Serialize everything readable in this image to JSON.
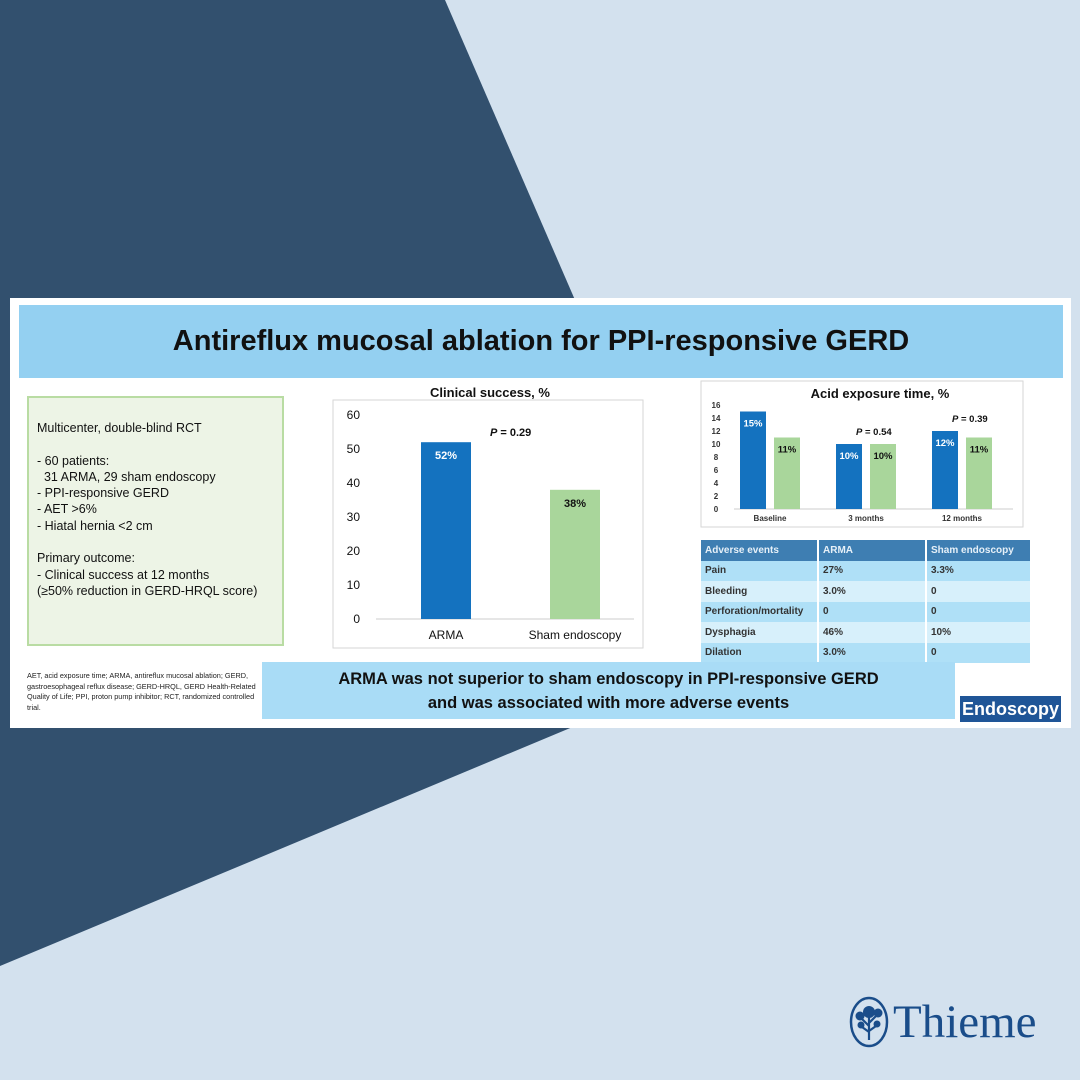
{
  "title": "Antireflux mucosal ablation for PPI-responsive GERD",
  "study_design": {
    "lines": [
      "Multicenter, double-blind RCT",
      "",
      "- 60 patients:",
      "  31 ARMA, 29 sham endoscopy",
      "- PPI-responsive GERD",
      "- AET >6%",
      "- Hiatal hernia <2 cm",
      "",
      "Primary outcome:",
      "- Clinical success at 12 months",
      "(≥50% reduction in GERD-HRQL score)"
    ]
  },
  "footnote": "AET, acid exposure time; ARMA, antireflux mucosal ablation; GERD, gastroesophageal reflux disease; GERD-HRQL, GERD Health-Related Quality of Life; PPI, proton pump inhibitor; RCT, randomized controlled trial.",
  "conclusion": {
    "line1": "ARMA was not superior to sham endoscopy in PPI-responsive GERD",
    "line2": "and was associated with more adverse events"
  },
  "journal_logo": "Endoscopy",
  "publisher_logo": "Thieme",
  "colors": {
    "background": "#d3e1ee",
    "dark_triangle": "#32506e",
    "arma_bar": "#1472bf",
    "sham_bar": "#a9d69b",
    "title_band": "#94d0f1",
    "publisher": "#1a4d8a"
  },
  "chart_data": [
    {
      "type": "bar",
      "title": "Clinical success, %",
      "categories": [
        "ARMA",
        "Sham endoscopy"
      ],
      "values": [
        52,
        38
      ],
      "data_labels": [
        "52%",
        "38%"
      ],
      "ylim": [
        0,
        60
      ],
      "yticks": [
        0,
        10,
        20,
        30,
        40,
        50,
        60
      ],
      "annotation_prefix": "P",
      "annotation_value": " = 0.29",
      "colors": [
        "#1472bf",
        "#a9d69b"
      ],
      "grid": false
    },
    {
      "type": "bar",
      "title": "Acid exposure time, %",
      "categories": [
        "Baseline",
        "3 months",
        "12 months"
      ],
      "series": [
        {
          "values": [
            15,
            10,
            12
          ],
          "data_labels": [
            "15%",
            "10%",
            "12%"
          ],
          "color": "#1472bf"
        },
        {
          "values": [
            11,
            10,
            11
          ],
          "data_labels": [
            "11%",
            "10%",
            "11%"
          ],
          "color": "#a9d69b"
        }
      ],
      "ylim": [
        0,
        16
      ],
      "yticks": [
        0,
        2,
        4,
        6,
        8,
        10,
        12,
        14,
        16
      ],
      "annotations": [
        {
          "category": "3 months",
          "prefix": "P",
          "value": " = 0.54"
        },
        {
          "category": "12 months",
          "prefix": "P",
          "value": " = 0.39"
        }
      ],
      "grid": false
    }
  ],
  "adverse_events_table": {
    "headers": [
      "Adverse events",
      "ARMA",
      "Sham endoscopy"
    ],
    "rows": [
      [
        "Pain",
        "27%",
        "3.3%"
      ],
      [
        "Bleeding",
        "3.0%",
        "0"
      ],
      [
        "Perforation/mortality",
        "0",
        "0"
      ],
      [
        "Dysphagia",
        "46%",
        "10%"
      ],
      [
        "Dilation",
        "3.0%",
        "0"
      ]
    ]
  }
}
